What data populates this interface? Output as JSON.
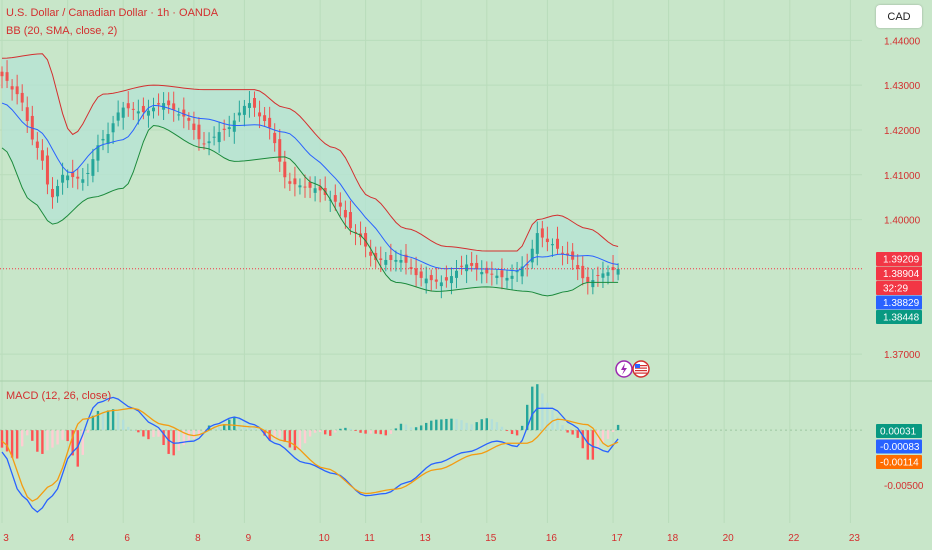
{
  "header": {
    "title": "U.S. Dollar / Canadian Dollar · 1h · OANDA",
    "bb_label": "BB (20, SMA, close, 2)",
    "macd_label": "MACD (12, 26, close)"
  },
  "currency_button": "CAD",
  "colors": {
    "background": "#c8e6c9",
    "text": "#d32f2f",
    "bb_upper": "#d32f2f",
    "bb_basis": "#2962ff",
    "bb_lower": "#1b8a3c",
    "bb_fill": "#b6e3d4",
    "candle_up": "#26a69a",
    "candle_down": "#ef5350",
    "macd_line": "#2962ff",
    "signal_line": "#f39c12"
  },
  "icons": [
    "lightning-icon",
    "us-flag-icon"
  ],
  "chart_data": [
    {
      "type": "candlestick",
      "title": "U.S. Dollar / Canadian Dollar · 1h · OANDA",
      "indicator": "BB (20, SMA, close, 2)",
      "price_axis": {
        "ticks": [
          1.44,
          1.43,
          1.42,
          1.41,
          1.4,
          1.37
        ],
        "tick_labels": [
          "1.44000",
          "1.43000",
          "1.42000",
          "1.41000",
          "1.40000",
          "1.37000"
        ],
        "ylim": [
          1.364,
          1.449
        ]
      },
      "x_axis": {
        "tick_labels": [
          "3",
          "4",
          "6",
          "8",
          "9",
          "10",
          "11",
          "13",
          "15",
          "16",
          "17",
          "18",
          "20",
          "22",
          "23"
        ],
        "tick_slots": [
          0,
          13,
          24,
          38,
          48,
          63,
          72,
          83,
          96,
          108,
          121,
          132,
          143,
          156,
          168
        ]
      },
      "price_labels": [
        {
          "text": "1.39209",
          "value": 1.39209,
          "color": "#f23645"
        },
        {
          "text": "1.38904",
          "value": 1.38904,
          "color": "#f23645"
        },
        {
          "text": "32:29",
          "value": 1.38904,
          "color": "#f23645"
        },
        {
          "text": "1.38829",
          "value": 1.38829,
          "color": "#2962ff"
        },
        {
          "text": "1.38448",
          "value": 1.38448,
          "color": "#089981"
        }
      ],
      "current_price": 1.38904,
      "anchors": [
        [
          0,
          1.432
        ],
        [
          3,
          1.428
        ],
        [
          7,
          1.416
        ],
        [
          10,
          1.405
        ],
        [
          12,
          1.41
        ],
        [
          16,
          1.409
        ],
        [
          20,
          1.418
        ],
        [
          24,
          1.425
        ],
        [
          28,
          1.424
        ],
        [
          32,
          1.426
        ],
        [
          36,
          1.423
        ],
        [
          40,
          1.417
        ],
        [
          44,
          1.42
        ],
        [
          49,
          1.426
        ],
        [
          52,
          1.422
        ],
        [
          57,
          1.408
        ],
        [
          62,
          1.407
        ],
        [
          66,
          1.404
        ],
        [
          70,
          1.397
        ],
        [
          74,
          1.391
        ],
        [
          79,
          1.391
        ],
        [
          83,
          1.387
        ],
        [
          87,
          1.386
        ],
        [
          92,
          1.39
        ],
        [
          96,
          1.388
        ],
        [
          100,
          1.387
        ],
        [
          104,
          1.39
        ],
        [
          106,
          1.397
        ],
        [
          108,
          1.395
        ],
        [
          112,
          1.392
        ],
        [
          116,
          1.386
        ],
        [
          119,
          1.388
        ],
        [
          122,
          1.389
        ]
      ],
      "bb_upper_anchors": [
        [
          0,
          1.436
        ],
        [
          8,
          1.437
        ],
        [
          14,
          1.419
        ],
        [
          20,
          1.428
        ],
        [
          30,
          1.43
        ],
        [
          40,
          1.429
        ],
        [
          50,
          1.429
        ],
        [
          56,
          1.425
        ],
        [
          66,
          1.416
        ],
        [
          73,
          1.405
        ],
        [
          80,
          1.398
        ],
        [
          88,
          1.394
        ],
        [
          96,
          1.393
        ],
        [
          102,
          1.393
        ],
        [
          106,
          1.4
        ],
        [
          110,
          1.401
        ],
        [
          116,
          1.398
        ],
        [
          122,
          1.394
        ]
      ],
      "bb_lower_anchors": [
        [
          0,
          1.416
        ],
        [
          6,
          1.404
        ],
        [
          10,
          1.399
        ],
        [
          18,
          1.405
        ],
        [
          24,
          1.407
        ],
        [
          30,
          1.421
        ],
        [
          40,
          1.416
        ],
        [
          46,
          1.413
        ],
        [
          56,
          1.414
        ],
        [
          62,
          1.408
        ],
        [
          70,
          1.397
        ],
        [
          78,
          1.386
        ],
        [
          86,
          1.384
        ],
        [
          96,
          1.385
        ],
        [
          104,
          1.384
        ],
        [
          108,
          1.383
        ],
        [
          112,
          1.384
        ],
        [
          116,
          1.386
        ],
        [
          122,
          1.386
        ]
      ]
    },
    {
      "type": "line",
      "title": "MACD (12, 26, close)",
      "axis": {
        "ticks": [
          0.00031,
          -0.005
        ],
        "tick_labels": [
          "0.00031",
          "-0.00500"
        ],
        "ylim": [
          -0.0085,
          0.0045
        ]
      },
      "macd_labels": [
        {
          "text": "0.00031",
          "value": 0.00031,
          "color": "#089981"
        },
        {
          "text": "-0.00083",
          "value": -0.00083,
          "color": "#2962ff"
        },
        {
          "text": "-0.00114",
          "value": -0.00114,
          "color": "#ff6d00"
        }
      ],
      "macd_anchors": [
        [
          0,
          -0.002
        ],
        [
          4,
          -0.006
        ],
        [
          7,
          -0.0075
        ],
        [
          10,
          -0.006
        ],
        [
          14,
          -0.002
        ],
        [
          19,
          0.0025
        ],
        [
          22,
          0.003
        ],
        [
          26,
          0.002
        ],
        [
          30,
          0.0005
        ],
        [
          34,
          -0.0012
        ],
        [
          38,
          -0.001
        ],
        [
          42,
          0.0005
        ],
        [
          46,
          0.0012
        ],
        [
          50,
          0.0005
        ],
        [
          54,
          -0.0012
        ],
        [
          60,
          -0.003
        ],
        [
          66,
          -0.004
        ],
        [
          72,
          -0.006
        ],
        [
          76,
          -0.0058
        ],
        [
          80,
          -0.0048
        ],
        [
          86,
          -0.003
        ],
        [
          92,
          -0.002
        ],
        [
          98,
          -0.001
        ],
        [
          102,
          -0.0015
        ],
        [
          106,
          0.002
        ],
        [
          109,
          0.002
        ],
        [
          113,
          0.0005
        ],
        [
          117,
          -0.0015
        ],
        [
          120,
          -0.002
        ],
        [
          122,
          -0.0008
        ]
      ],
      "signal_anchors": [
        [
          0,
          -0.001
        ],
        [
          6,
          -0.0065
        ],
        [
          10,
          -0.005
        ],
        [
          16,
          0.001
        ],
        [
          22,
          0.0018
        ],
        [
          26,
          0.002
        ],
        [
          32,
          0.0005
        ],
        [
          38,
          -0.0005
        ],
        [
          44,
          0.0005
        ],
        [
          50,
          0.0003
        ],
        [
          56,
          -0.001
        ],
        [
          64,
          -0.0035
        ],
        [
          72,
          -0.0058
        ],
        [
          78,
          -0.0054
        ],
        [
          86,
          -0.0036
        ],
        [
          94,
          -0.0022
        ],
        [
          100,
          -0.0012
        ],
        [
          104,
          -0.0012
        ],
        [
          110,
          0.001
        ],
        [
          116,
          0.0005
        ],
        [
          120,
          -0.0015
        ],
        [
          122,
          -0.0011
        ]
      ]
    }
  ]
}
